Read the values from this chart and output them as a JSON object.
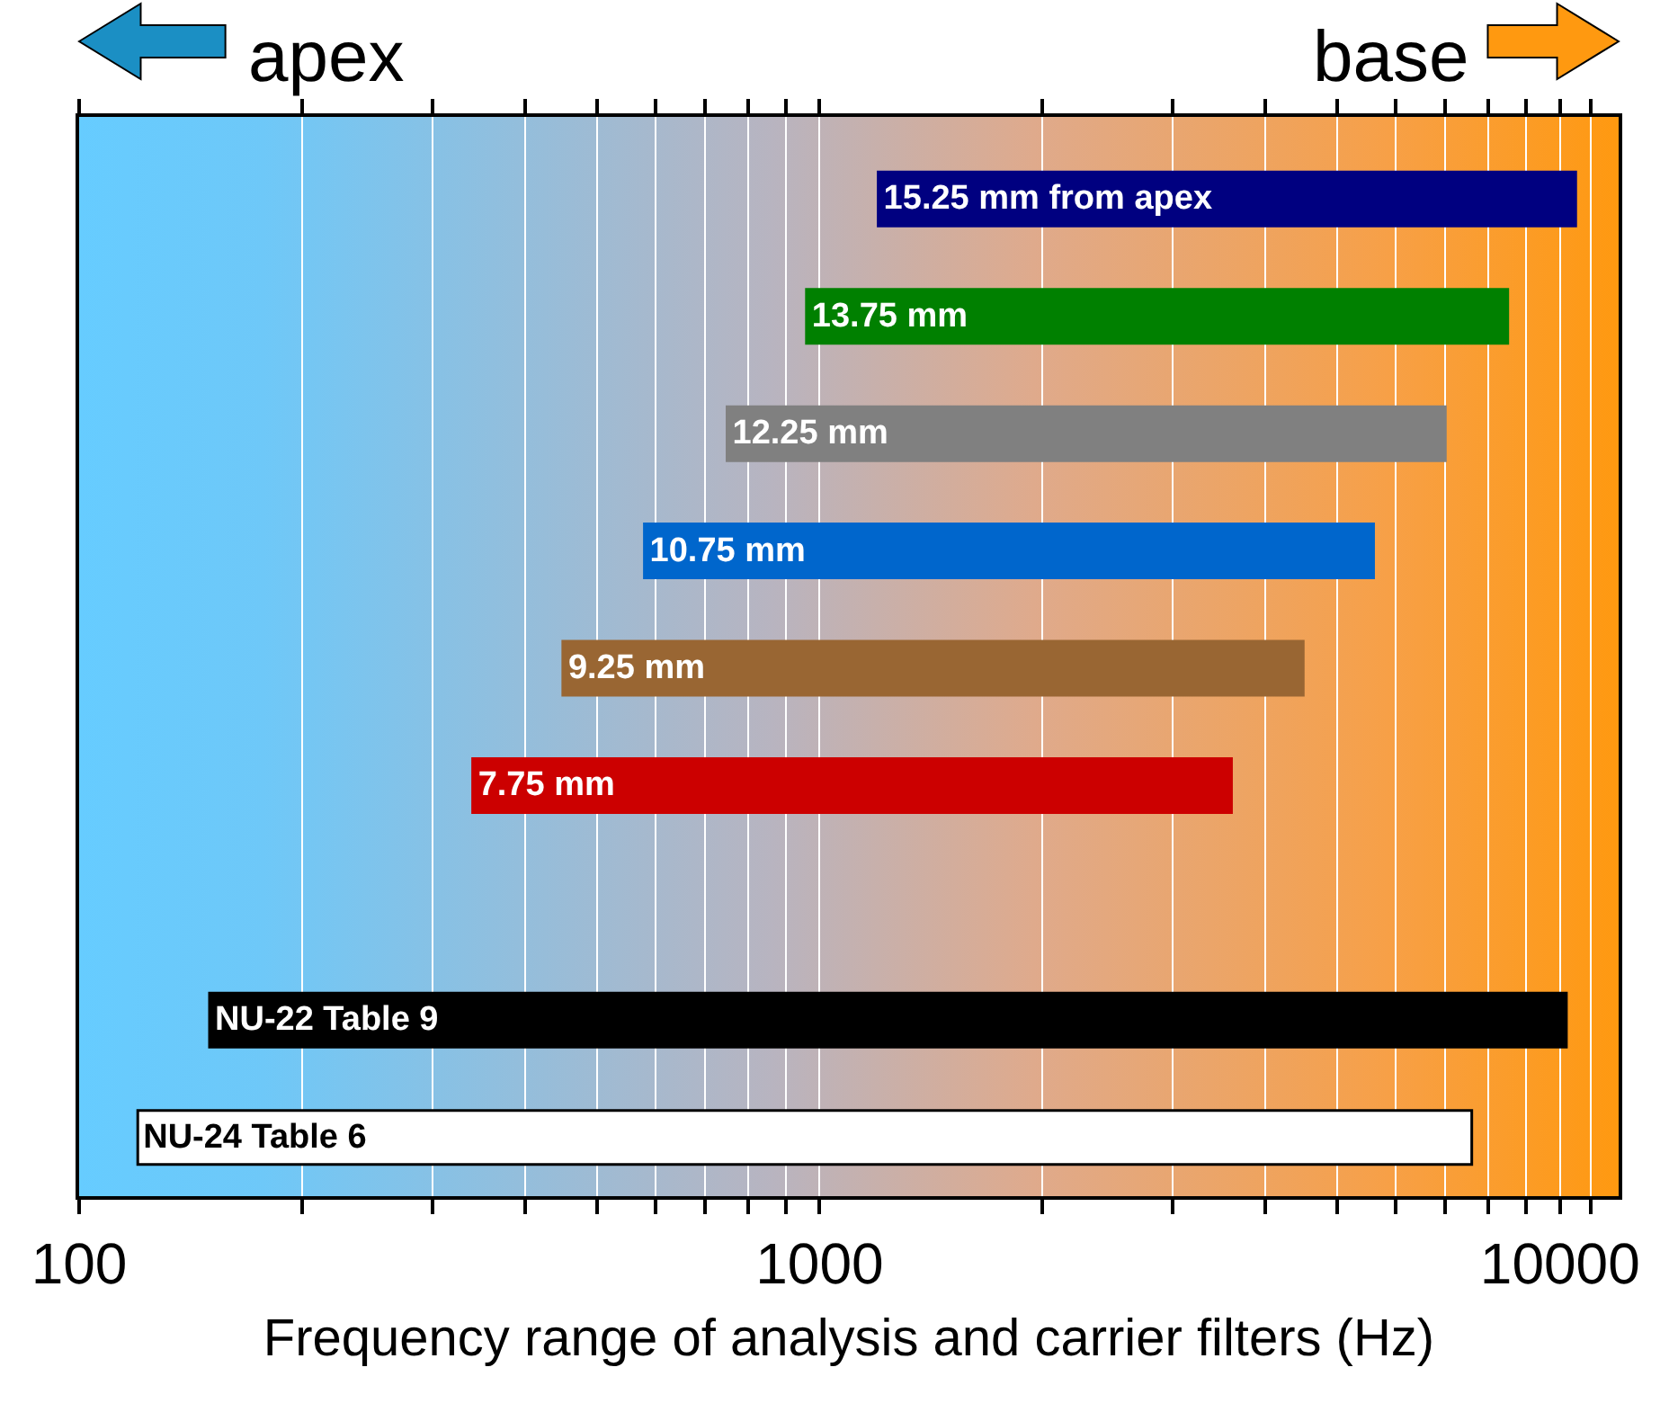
{
  "chart_data": {
    "type": "bar",
    "orientation": "horizontal",
    "categories": [
      "15.25 mm from apex",
      "13.75 mm",
      "12.25 mm",
      "10.75 mm",
      "9.25 mm",
      "7.75 mm",
      null,
      "NU-22 Table 9",
      "NU-24 Table 6"
    ],
    "base": [
      1200,
      960,
      750,
      580,
      450,
      340,
      null,
      150,
      120
    ],
    "values": [
      9300,
      7540,
      6250,
      5020,
      4050,
      3260,
      null,
      10050,
      7480
    ],
    "colors": [
      "#000080",
      "#008000",
      "#808080",
      "#0066cc",
      "#996633",
      "#cc0000",
      "#000000",
      "#000000",
      "#ffffff"
    ],
    "log": "x",
    "xlim": [
      100,
      12000
    ],
    "xticks": [
      100,
      {
        "value": 200,
        "label": null
      },
      {
        "value": 300,
        "label": null
      },
      {
        "value": 400,
        "label": null
      },
      {
        "value": 500,
        "label": null
      },
      {
        "value": 600,
        "label": null
      },
      {
        "value": 700,
        "label": null
      },
      {
        "value": 800,
        "label": null
      },
      {
        "value": 900,
        "label": null
      },
      1000,
      {
        "value": 2000,
        "label": null
      },
      {
        "value": 3000,
        "label": null
      },
      {
        "value": 4000,
        "label": null
      },
      {
        "value": 5000,
        "label": null
      },
      {
        "value": 6000,
        "label": null
      },
      {
        "value": 7000,
        "label": null
      },
      {
        "value": 8000,
        "label": null
      },
      {
        "value": 9000,
        "label": null
      },
      10000,
      {
        "value": 11000,
        "label": null
      }
    ],
    "grid": "x",
    "tick_labels": "x",
    "legend": false,
    "xlabel": "Frequency range of analysis and carrier filters (Hz)",
    "annotations": [
      "apex",
      "base"
    ]
  }
}
